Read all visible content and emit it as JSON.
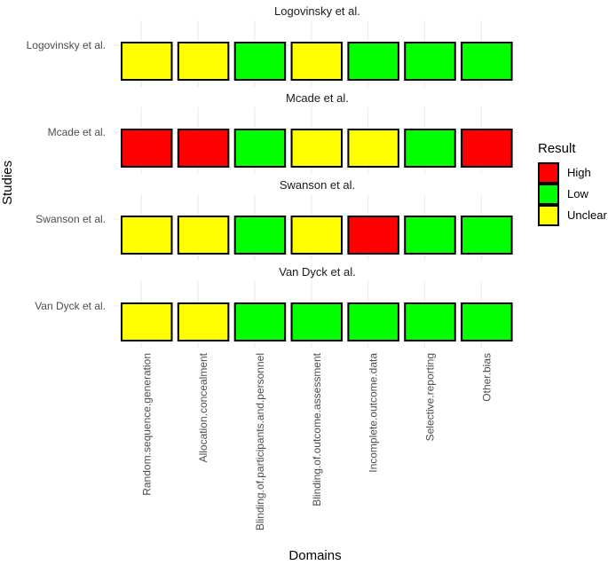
{
  "chart_data": {
    "type": "heatmap",
    "xlabel": "Domains",
    "ylabel": "Studies",
    "domains": [
      "Random.sequence.generation",
      "Allocation.concealment",
      "Blinding.of.participants.and.personnel",
      "Blinding.of.outcome.assessment",
      "Incomplete.outcome.data",
      "Selective.reporting",
      "Other.bias"
    ],
    "studies": [
      {
        "name": "Logovinsky et al.",
        "strip": "Logovinsky et al.",
        "values": [
          "Unclear",
          "Unclear",
          "Low",
          "Unclear",
          "Low",
          "Low",
          "Low"
        ]
      },
      {
        "name": "Mcade et al.",
        "strip": "Mcade et al.",
        "values": [
          "High",
          "High",
          "Low",
          "Unclear",
          "Unclear",
          "Low",
          "High"
        ]
      },
      {
        "name": "Swanson et al.",
        "strip": "Swanson et al.",
        "values": [
          "Unclear",
          "Unclear",
          "Low",
          "Unclear",
          "High",
          "Low",
          "Low"
        ]
      },
      {
        "name": "Van Dyck et al.",
        "strip": "Van Dyck et al.",
        "values": [
          "Unclear",
          "Unclear",
          "Low",
          "Low",
          "Low",
          "Low",
          "Low"
        ]
      }
    ],
    "legend": {
      "title": "Result",
      "position": "right",
      "items": [
        {
          "label": "High",
          "color": "#ff0000"
        },
        {
          "label": "Low",
          "color": "#00ff00"
        },
        {
          "label": "Unclear",
          "color": "#ffff00"
        }
      ]
    },
    "grid": true
  }
}
